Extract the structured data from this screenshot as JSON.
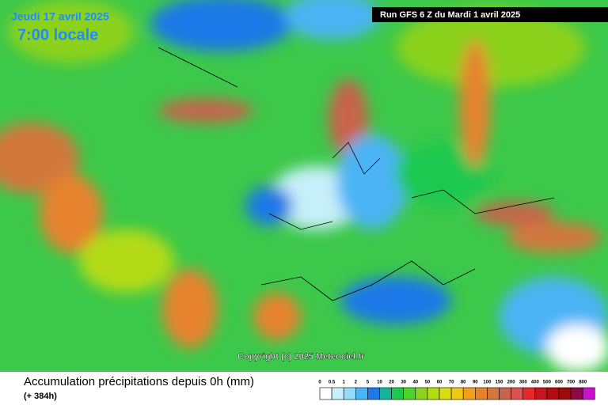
{
  "header": {
    "date": "Jeudi 17 avril 2025",
    "time": "7:00 locale",
    "run": "Run GFS 6 Z du Mardi 1 avril 2025"
  },
  "copyright": "Copyright (c) 2025 Meteociel.fr",
  "footer": {
    "title": "Accumulation précipitations depuis 0h (mm)",
    "subtitle": "(+ 384h)"
  },
  "legend": {
    "labels": [
      "0",
      "0.5",
      "1",
      "2",
      "5",
      "10",
      "20",
      "30",
      "40",
      "50",
      "60",
      "70",
      "80",
      "90",
      "100",
      "150",
      "200",
      "300",
      "400",
      "500",
      "600",
      "700",
      "800"
    ],
    "colors": [
      "#ffffff",
      "#c8f0fa",
      "#96dcfa",
      "#4bb4f5",
      "#1e78e6",
      "#14b496",
      "#1ec850",
      "#50d228",
      "#8cd21e",
      "#b4dc14",
      "#dcdc14",
      "#f0c814",
      "#f0a01e",
      "#e6822d",
      "#d2783c",
      "#c8644b",
      "#dc5050",
      "#e62828",
      "#c8141e",
      "#b40a14",
      "#a00a0a",
      "#8c0a46",
      "#c814c8"
    ]
  }
}
